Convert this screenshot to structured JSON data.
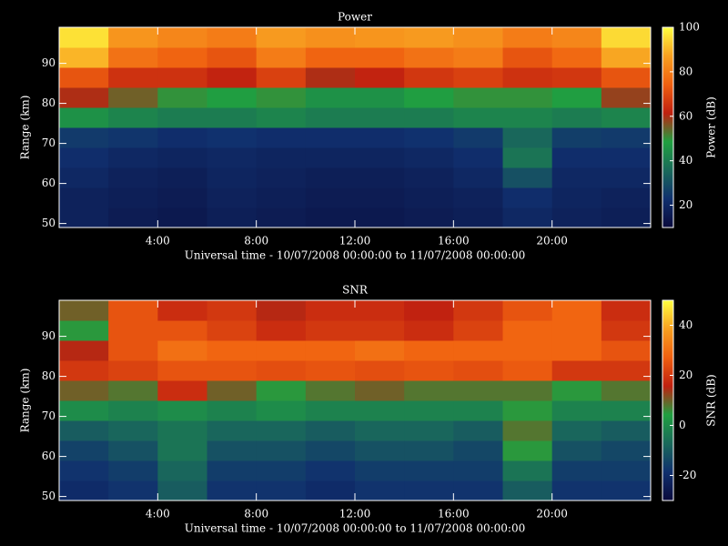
{
  "chart_data": [
    {
      "type": "heatmap",
      "title": "Power",
      "xlabel": "Universal time - 10/07/2008 00:00:00 to 11/07/2008 00:00:00",
      "ylabel": "Range (km)",
      "colorbar_label": "Power (dB)",
      "xlim": [
        0,
        24
      ],
      "xticks": [
        {
          "value": 4,
          "label": "4:00"
        },
        {
          "value": 8,
          "label": "8:00"
        },
        {
          "value": 12,
          "label": "12:00"
        },
        {
          "value": 16,
          "label": "16:00"
        },
        {
          "value": 20,
          "label": "20:00"
        }
      ],
      "ylim": [
        49,
        99
      ],
      "yticks": [
        50,
        60,
        70,
        80,
        90
      ],
      "clim": [
        10,
        100
      ],
      "cticks": [
        20,
        40,
        60,
        80,
        100
      ],
      "colormap": [
        "#0a0a3c",
        "#10306e",
        "#1a6a5a",
        "#20a040",
        "#c02010",
        "#f06010",
        "#f8a020",
        "#ffff40"
      ],
      "xbins": [
        0,
        2,
        4,
        6,
        8,
        10,
        12,
        14,
        16,
        18,
        20,
        22,
        24
      ],
      "ybins": [
        49,
        54,
        59,
        64,
        69,
        74,
        79,
        84,
        89,
        94,
        99
      ],
      "values": [
        [
          18,
          16,
          15,
          17,
          16,
          15,
          15,
          16,
          17,
          20,
          18,
          17
        ],
        [
          18,
          17,
          16,
          18,
          17,
          16,
          16,
          17,
          18,
          22,
          19,
          18
        ],
        [
          20,
          18,
          17,
          19,
          18,
          17,
          17,
          18,
          20,
          30,
          20,
          20
        ],
        [
          22,
          20,
          19,
          20,
          19,
          19,
          19,
          20,
          22,
          38,
          22,
          22
        ],
        [
          25,
          24,
          22,
          23,
          22,
          22,
          22,
          23,
          25,
          35,
          26,
          25
        ],
        [
          45,
          42,
          40,
          40,
          42,
          40,
          40,
          40,
          42,
          42,
          40,
          42
        ],
        [
          60,
          55,
          50,
          48,
          50,
          45,
          45,
          48,
          50,
          50,
          48,
          58
        ],
        [
          72,
          65,
          65,
          62,
          68,
          60,
          62,
          66,
          68,
          65,
          66,
          72
        ],
        [
          90,
          78,
          75,
          72,
          80,
          75,
          75,
          78,
          80,
          72,
          76,
          88
        ],
        [
          96,
          85,
          82,
          80,
          86,
          84,
          85,
          86,
          84,
          80,
          82,
          95
        ]
      ]
    },
    {
      "type": "heatmap",
      "title": "SNR",
      "xlabel": "Universal time - 10/07/2008 00:00:00 to 11/07/2008 00:00:00",
      "ylabel": "Range (km)",
      "colorbar_label": "SNR (dB)",
      "xlim": [
        0,
        24
      ],
      "xticks": [
        {
          "value": 4,
          "label": "4:00"
        },
        {
          "value": 8,
          "label": "8:00"
        },
        {
          "value": 12,
          "label": "12:00"
        },
        {
          "value": 16,
          "label": "16:00"
        },
        {
          "value": 20,
          "label": "20:00"
        }
      ],
      "ylim": [
        49,
        99
      ],
      "yticks": [
        50,
        60,
        70,
        80,
        90
      ],
      "clim": [
        -30,
        50
      ],
      "cticks": [
        -20,
        0,
        20,
        40
      ],
      "colormap": [
        "#0a0a3c",
        "#10306e",
        "#1a6a5a",
        "#20a040",
        "#c02010",
        "#f06010",
        "#f8a020",
        "#ffff40"
      ],
      "xbins": [
        0,
        2,
        4,
        6,
        8,
        10,
        12,
        14,
        16,
        18,
        20,
        22,
        24
      ],
      "ybins": [
        49,
        54,
        59,
        64,
        69,
        74,
        79,
        84,
        89,
        94,
        99
      ],
      "values": [
        [
          -20,
          -18,
          -10,
          -18,
          -18,
          -20,
          -18,
          -18,
          -18,
          -10,
          -18,
          -18
        ],
        [
          -18,
          -16,
          -8,
          -16,
          -16,
          -18,
          -16,
          -16,
          -16,
          -5,
          -16,
          -16
        ],
        [
          -15,
          -12,
          -5,
          -12,
          -12,
          -14,
          -12,
          -12,
          -14,
          5,
          -12,
          -14
        ],
        [
          -10,
          -8,
          -5,
          -8,
          -8,
          -10,
          -8,
          -8,
          -10,
          8,
          -8,
          -10
        ],
        [
          0,
          -2,
          0,
          -2,
          0,
          -2,
          -2,
          -2,
          -2,
          5,
          -2,
          -2
        ],
        [
          10,
          8,
          18,
          10,
          5,
          8,
          10,
          8,
          8,
          8,
          5,
          8
        ],
        [
          20,
          22,
          25,
          25,
          24,
          25,
          24,
          25,
          24,
          26,
          20,
          20
        ],
        [
          15,
          25,
          30,
          28,
          28,
          28,
          30,
          28,
          28,
          28,
          28,
          25
        ],
        [
          5,
          25,
          25,
          22,
          18,
          20,
          20,
          18,
          22,
          28,
          28,
          20
        ],
        [
          10,
          25,
          18,
          20,
          15,
          18,
          18,
          16,
          20,
          25,
          28,
          18
        ]
      ]
    }
  ]
}
